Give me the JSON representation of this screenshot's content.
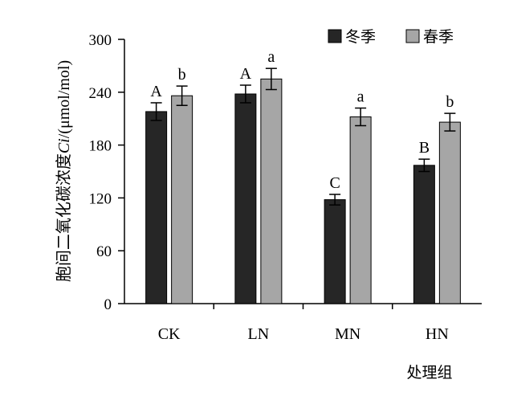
{
  "chart_data": {
    "type": "bar",
    "xlabel": "处理组",
    "ylabel_prefix": "胞间二氧化碳浓度",
    "ylabel_symbol": "Ci",
    "ylabel_unit": "/(μmol/mol)",
    "ylim": [
      0,
      300
    ],
    "yticks": [
      "0",
      "60",
      "120",
      "180",
      "240",
      "300"
    ],
    "grid": false,
    "legend_position": "top-right",
    "categories": [
      "CK",
      "LN",
      "MN",
      "HN"
    ],
    "series": [
      {
        "name": "冬季",
        "color": "#262626",
        "values": [
          218,
          238,
          118,
          157
        ],
        "errors": [
          10,
          10,
          6,
          7
        ],
        "labels": [
          "A",
          "A",
          "C",
          "B"
        ]
      },
      {
        "name": "春季",
        "color": "#a6a6a6",
        "values": [
          236,
          255,
          212,
          206
        ],
        "errors": [
          11,
          12,
          10,
          10
        ],
        "labels": [
          "b",
          "a",
          "a",
          "b"
        ]
      }
    ]
  }
}
